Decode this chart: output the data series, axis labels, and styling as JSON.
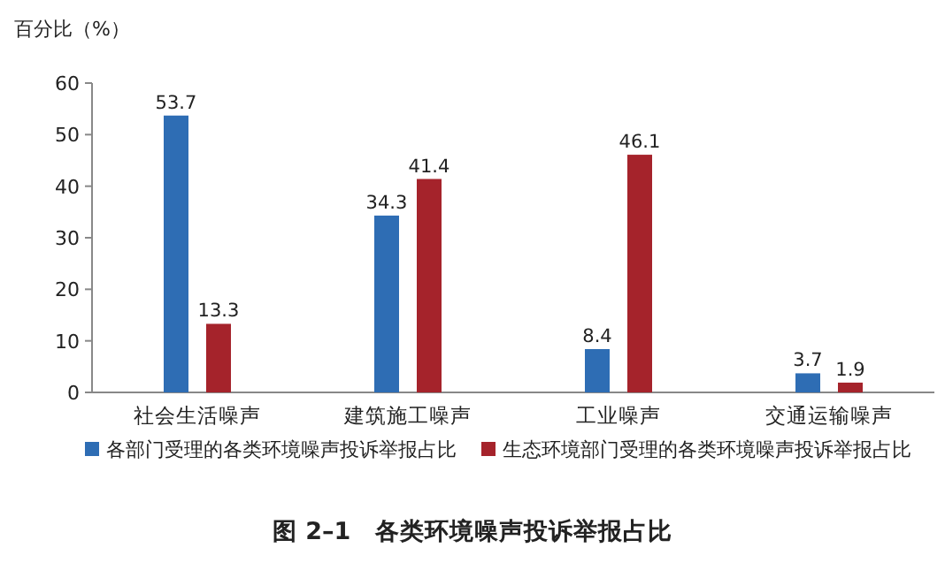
{
  "chart_data": {
    "type": "bar",
    "title": "图 2–1　各类环境噪声投诉举报占比",
    "ylabel": "百分比（%）",
    "categories": [
      "社会生活噪声",
      "建筑施工噪声",
      "工业噪声",
      "交通运输噪声"
    ],
    "series": [
      {
        "name": "各部门受理的各类环境噪声投诉举报占比",
        "color": "#2e6db4",
        "values": [
          53.7,
          34.3,
          8.4,
          3.7
        ]
      },
      {
        "name": "生态环境部门受理的各类环境噪声投诉举报占比",
        "color": "#a5232b",
        "values": [
          13.3,
          41.4,
          46.1,
          1.9
        ]
      }
    ],
    "ylim": [
      0,
      60
    ],
    "yticks": [
      0,
      10,
      20,
      30,
      40,
      50,
      60
    ],
    "data_labels": true,
    "legend": "bottom",
    "grid": false
  }
}
